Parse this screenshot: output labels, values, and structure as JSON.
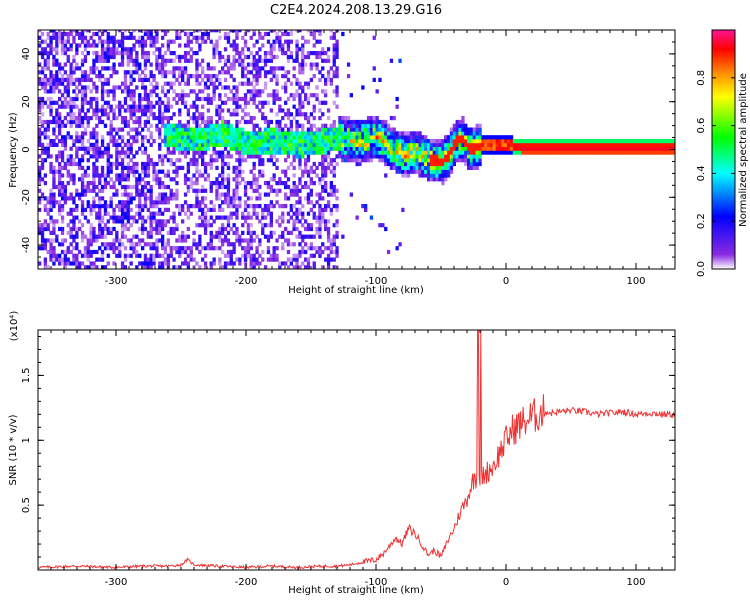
{
  "title": "C2E4.2024.208.13.29.G16",
  "chart_data": [
    {
      "type": "heatmap",
      "xlabel": "Height of straight line (km)",
      "ylabel": "Frequency (Hz)",
      "xlim": [
        -360,
        130
      ],
      "ylim": [
        -50,
        50
      ],
      "x_ticks": [
        -300,
        -200,
        -100,
        0,
        100
      ],
      "y_ticks": [
        -40,
        -20,
        0,
        20,
        40
      ],
      "colorbar": {
        "label": "Normalized spectral amplitude",
        "range": [
          0.0,
          1.0
        ],
        "ticks": [
          0.0,
          0.2,
          0.4,
          0.6,
          0.8
        ],
        "colormap": [
          "#ffffff",
          "#8a2be2",
          "#0000ff",
          "#00ffff",
          "#00ff00",
          "#ffff00",
          "#ff8c00",
          "#ff0000",
          "#ff1493"
        ]
      },
      "ridge": {
        "x": [
          -260,
          -240,
          -220,
          -200,
          -180,
          -160,
          -130,
          -115,
          -100,
          -90,
          -80,
          -70,
          -60,
          -50,
          -45,
          -40,
          -35,
          -30,
          -25,
          -20,
          -10,
          0,
          10,
          130
        ],
        "y": [
          5,
          3,
          6,
          2,
          3,
          1,
          4,
          3,
          4,
          0,
          -3,
          -2,
          -5,
          -6,
          -3,
          2,
          4,
          0,
          0,
          1,
          1,
          1,
          0,
          0
        ]
      }
    },
    {
      "type": "line",
      "xlabel": "Height of straight line (km)",
      "ylabel": "SNR (10 * v/v)",
      "y_multiplier": "(x10⁴)",
      "xlim": [
        -360,
        130
      ],
      "ylim": [
        0,
        1.85
      ],
      "x_ticks": [
        -300,
        -200,
        -100,
        0,
        100
      ],
      "y_ticks": [
        0.5,
        1.0,
        1.5
      ],
      "color": "#ee3333",
      "series": [
        {
          "x": [
            -360,
            -330,
            -300,
            -280,
            -260,
            -250,
            -245,
            -240,
            -220,
            -200,
            -180,
            -160,
            -140,
            -130,
            -120,
            -110,
            -100,
            -95,
            -90,
            -85,
            -80,
            -75,
            -70,
            -65,
            -60,
            -55,
            -50,
            -45,
            -40,
            -35,
            -30,
            -25,
            -20,
            -15,
            -10,
            -5,
            0,
            5,
            10,
            15,
            20,
            25,
            30,
            35,
            40,
            50,
            60,
            70,
            80,
            90,
            100,
            110,
            120,
            130
          ],
          "y": [
            0.02,
            0.03,
            0.02,
            0.03,
            0.03,
            0.04,
            0.08,
            0.04,
            0.03,
            0.02,
            0.03,
            0.02,
            0.03,
            0.03,
            0.04,
            0.06,
            0.08,
            0.12,
            0.18,
            0.25,
            0.2,
            0.32,
            0.28,
            0.2,
            0.12,
            0.15,
            0.1,
            0.22,
            0.32,
            0.45,
            0.55,
            0.7,
            0.72,
            0.75,
            0.8,
            0.9,
            1.0,
            1.08,
            1.12,
            1.15,
            1.18,
            1.2,
            1.22,
            1.21,
            1.22,
            1.23,
            1.22,
            1.2,
            1.21,
            1.22,
            1.2,
            1.21,
            1.2,
            1.2
          ]
        }
      ]
    }
  ]
}
